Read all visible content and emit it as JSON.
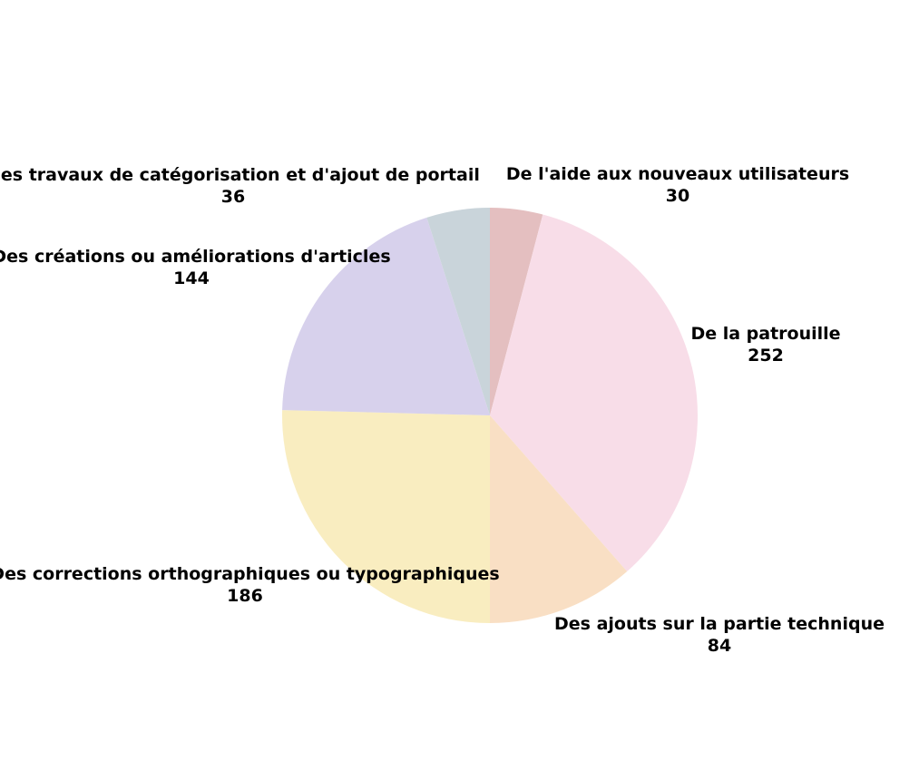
{
  "chart_data": {
    "type": "pie",
    "title": "",
    "start": "top",
    "direction": "clockwise",
    "legend": "none",
    "slices": [
      {
        "label": "De l'aide aux nouveaux utilisateurs",
        "value": 30,
        "color": "#e4bfc0"
      },
      {
        "label": "De la patrouille",
        "value": 252,
        "color": "#f8dde8"
      },
      {
        "label": "Des ajouts sur la partie technique",
        "value": 84,
        "color": "#f9dfc4"
      },
      {
        "label": "Des corrections orthographiques ou typographiques",
        "value": 186,
        "color": "#f9edc0"
      },
      {
        "label": "Des créations ou améliorations d'articles",
        "value": 144,
        "color": "#d7d1ec"
      },
      {
        "label": "Des travaux de catégorisation et d'ajout de portail",
        "value": 36,
        "color": "#c9d4da"
      }
    ]
  }
}
